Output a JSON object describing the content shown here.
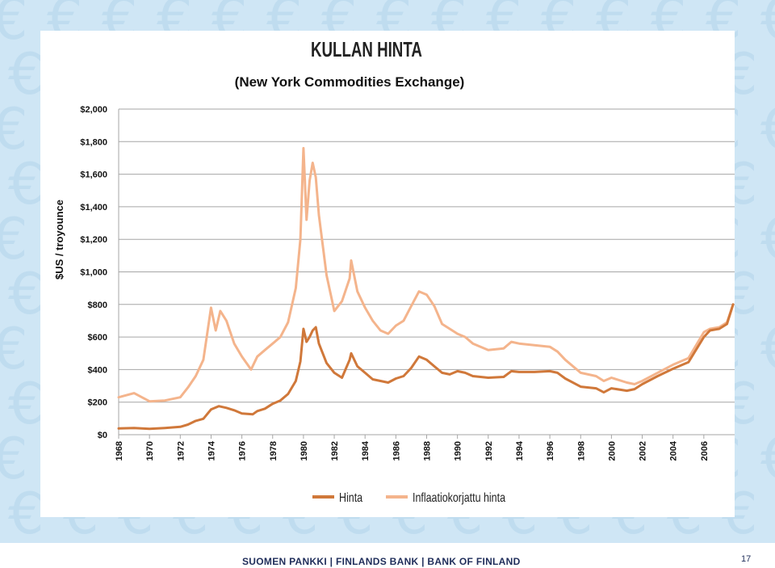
{
  "colors": {
    "background_band": "#cfe6f5",
    "euro_symbol": "#bfdcef",
    "series_hinta": "#d0783a",
    "series_inflation": "#f4b48c",
    "grid": "#a6a6a6",
    "footer_text": "#1f2d5a"
  },
  "background": {
    "icon": "euro-icon"
  },
  "footer": {
    "text": "SUOMEN PANKKI | FINLANDS BANK | BANK OF FINLAND",
    "page_number": "17"
  },
  "chart_data": {
    "type": "line",
    "title": "KULLAN HINTA",
    "subtitle": "(New York Commodities Exchange)",
    "xlabel": "",
    "ylabel": "$US / troyounce",
    "xlim": [
      1968,
      2008
    ],
    "ylim": [
      0,
      2000
    ],
    "y_ticks": [
      0,
      200,
      400,
      600,
      800,
      1000,
      1200,
      1400,
      1600,
      1800,
      2000
    ],
    "y_tick_labels": [
      "$0",
      "$200",
      "$400",
      "$600",
      "$800",
      "$1,000",
      "$1,200",
      "$1,400",
      "$1,600",
      "$1,800",
      "$2,000"
    ],
    "x_ticks": [
      1968,
      1970,
      1972,
      1974,
      1976,
      1978,
      1980,
      1982,
      1984,
      1986,
      1988,
      1990,
      1992,
      1994,
      1996,
      1998,
      2000,
      2002,
      2004,
      2006
    ],
    "x_tick_labels": [
      "1968",
      "1970",
      "1972",
      "1974",
      "1976",
      "1978",
      "1980",
      "1982",
      "1984",
      "1986",
      "1988",
      "1990",
      "1992",
      "1994",
      "1996",
      "1998",
      "2000",
      "2002",
      "2004",
      "2006"
    ],
    "grid": "horizontal",
    "legend_position": "bottom",
    "series": [
      {
        "name": "Hinta",
        "color": "#d0783a",
        "x": [
          1968,
          1969,
          1970,
          1971,
          1972,
          1972.5,
          1973,
          1973.5,
          1974,
          1974.5,
          1975,
          1975.5,
          1976,
          1976.7,
          1977,
          1977.5,
          1978,
          1978.5,
          1979,
          1979.5,
          1979.8,
          1980,
          1980.2,
          1980.4,
          1980.6,
          1980.8,
          1981,
          1981.5,
          1982,
          1982.5,
          1983,
          1983.1,
          1983.5,
          1984,
          1984.5,
          1985,
          1985.5,
          1986,
          1986.5,
          1987,
          1987.5,
          1988,
          1988.5,
          1989,
          1989.5,
          1990,
          1990.5,
          1991,
          1992,
          1993,
          1993.5,
          1994,
          1995,
          1996,
          1996.5,
          1997,
          1998,
          1999,
          1999.5,
          2000,
          2001,
          2001.5,
          2002,
          2003,
          2004,
          2005,
          2006,
          2006.4,
          2007,
          2007.5,
          2007.9
        ],
        "y": [
          38,
          41,
          36,
          41,
          48,
          62,
          85,
          98,
          155,
          175,
          165,
          150,
          130,
          125,
          145,
          160,
          190,
          210,
          250,
          330,
          450,
          650,
          570,
          600,
          640,
          660,
          560,
          440,
          380,
          350,
          460,
          500,
          420,
          380,
          340,
          330,
          320,
          345,
          360,
          410,
          480,
          460,
          420,
          380,
          370,
          390,
          380,
          360,
          350,
          355,
          390,
          385,
          385,
          390,
          380,
          345,
          295,
          285,
          260,
          285,
          270,
          280,
          310,
          360,
          405,
          445,
          600,
          640,
          650,
          680,
          800
        ]
      },
      {
        "name": "Inflaatiokorjattu hinta",
        "color": "#f4b48c",
        "x": [
          1968,
          1969,
          1970,
          1971,
          1972,
          1972.5,
          1973,
          1973.5,
          1974,
          1974.3,
          1974.6,
          1975,
          1975.5,
          1976,
          1976.6,
          1977,
          1977.5,
          1978,
          1978.5,
          1979,
          1979.5,
          1979.8,
          1980,
          1980.2,
          1980.4,
          1980.6,
          1980.8,
          1981,
          1981.5,
          1982,
          1982.5,
          1983,
          1983.1,
          1983.5,
          1984,
          1984.5,
          1985,
          1985.5,
          1986,
          1986.5,
          1987,
          1987.5,
          1988,
          1988.5,
          1989,
          1989.5,
          1990,
          1990.5,
          1991,
          1992,
          1993,
          1993.5,
          1994,
          1995,
          1996,
          1996.5,
          1997,
          1998,
          1999,
          1999.5,
          2000,
          2001,
          2001.5,
          2002,
          2003,
          2004,
          2005,
          2006,
          2006.4,
          2007,
          2007.5,
          2007.9
        ],
        "y": [
          230,
          255,
          205,
          210,
          230,
          290,
          360,
          460,
          780,
          640,
          760,
          700,
          560,
          480,
          400,
          480,
          520,
          560,
          600,
          690,
          900,
          1200,
          1760,
          1320,
          1560,
          1670,
          1580,
          1350,
          980,
          760,
          820,
          960,
          1070,
          880,
          780,
          700,
          640,
          620,
          670,
          700,
          790,
          880,
          860,
          790,
          680,
          650,
          620,
          600,
          560,
          520,
          530,
          570,
          560,
          550,
          540,
          510,
          460,
          380,
          360,
          330,
          350,
          320,
          310,
          330,
          380,
          430,
          470,
          630,
          650,
          660,
          690,
          800
        ]
      }
    ]
  }
}
